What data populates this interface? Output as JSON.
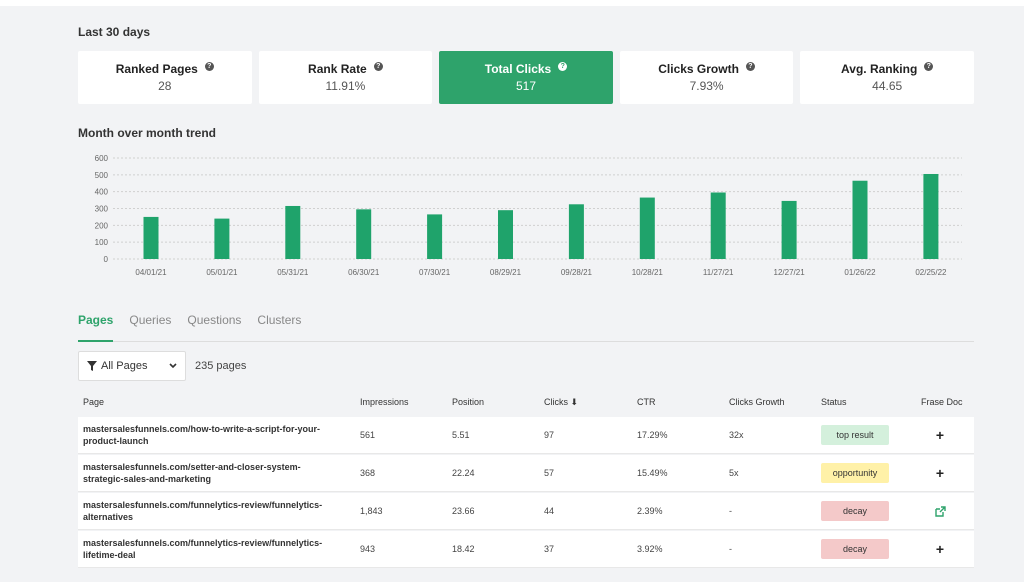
{
  "header": {
    "range_title": "Last 30 days"
  },
  "cards": [
    {
      "title": "Ranked Pages",
      "value": "28",
      "active": false
    },
    {
      "title": "Rank Rate",
      "value": "11.91%",
      "active": false
    },
    {
      "title": "Total Clicks",
      "value": "517",
      "active": true
    },
    {
      "title": "Clicks Growth",
      "value": "7.93%",
      "active": false
    },
    {
      "title": "Avg. Ranking",
      "value": "44.65",
      "active": false
    }
  ],
  "trend": {
    "title": "Month over month trend"
  },
  "chart_data": {
    "type": "bar",
    "title": "Month over month trend",
    "categories": [
      "04/01/21",
      "05/01/21",
      "05/31/21",
      "06/30/21",
      "07/30/21",
      "08/29/21",
      "09/28/21",
      "10/28/21",
      "11/27/21",
      "12/27/21",
      "01/26/22",
      "02/25/22"
    ],
    "values": [
      250,
      240,
      315,
      295,
      265,
      290,
      325,
      365,
      395,
      345,
      465,
      505
    ],
    "yticks": [
      "0",
      "100",
      "200",
      "300",
      "400",
      "500",
      "600"
    ],
    "ylim": [
      0,
      600
    ],
    "grid": true,
    "bar_color": "#1fa36b"
  },
  "tabs": [
    "Pages",
    "Queries",
    "Questions",
    "Clusters"
  ],
  "filter": {
    "label": "All Pages",
    "icon": "filter-icon"
  },
  "pages_count": "235 pages",
  "table": {
    "headers": {
      "page": "Page",
      "impressions": "Impressions",
      "position": "Position",
      "clicks": "Clicks",
      "sort_arrow": "⬇",
      "ctr": "CTR",
      "growth": "Clicks Growth",
      "status": "Status",
      "doc": "Frase Doc"
    },
    "rows": [
      {
        "page_line1": "mastersalesfunnels.com/how-to-write-a-script-for-your-",
        "page_line2": "product-launch",
        "impressions": "561",
        "position": "5.51",
        "clicks": "97",
        "ctr": "17.29%",
        "growth": "32x",
        "status": "top result",
        "action": "plus"
      },
      {
        "page_line1": "mastersalesfunnels.com/setter-and-closer-system-",
        "page_line2": "strategic-sales-and-marketing",
        "impressions": "368",
        "position": "22.24",
        "clicks": "57",
        "ctr": "15.49%",
        "growth": "5x",
        "status": "opportunity",
        "action": "plus"
      },
      {
        "page_line1": "mastersalesfunnels.com/funnelytics-review/funnelytics-",
        "page_line2": "alternatives",
        "impressions": "1,843",
        "position": "23.66",
        "clicks": "44",
        "ctr": "2.39%",
        "growth": "-",
        "status": "decay",
        "action": "external"
      },
      {
        "page_line1": "mastersalesfunnels.com/funnelytics-review/funnelytics-",
        "page_line2": "lifetime-deal",
        "impressions": "943",
        "position": "18.42",
        "clicks": "37",
        "ctr": "3.92%",
        "growth": "-",
        "status": "decay",
        "action": "plus"
      }
    ]
  },
  "colors": {
    "accent": "#2ea36b",
    "top_result": "#d4f0dc",
    "opportunity": "#fff1a8",
    "decay": "#f4c9c9"
  }
}
